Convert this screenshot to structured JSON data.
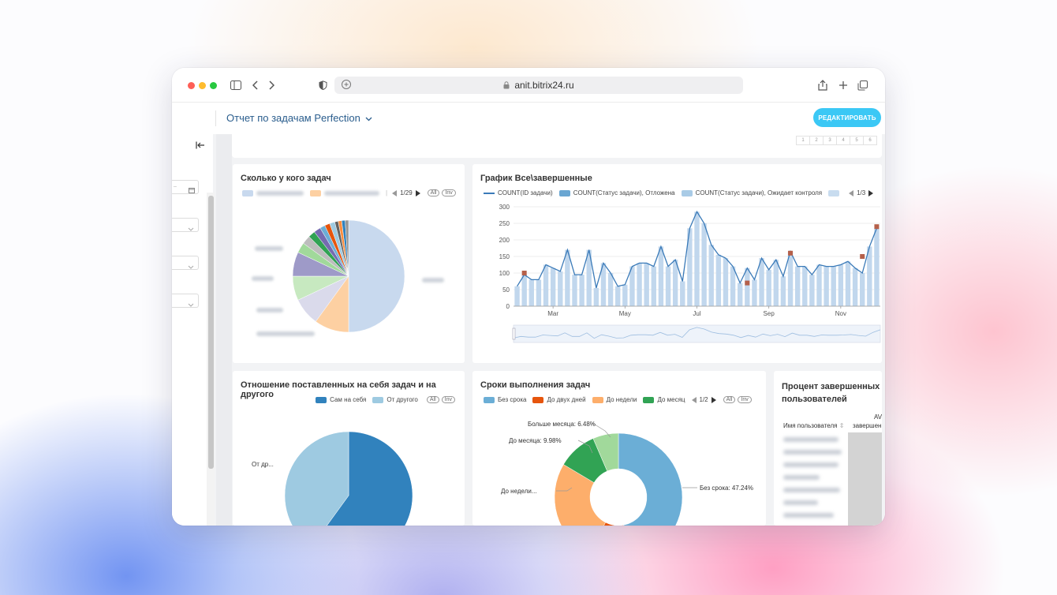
{
  "browser": {
    "url": "anit.bitrix24.ru"
  },
  "header": {
    "title": "Отчет по задачам Perfection",
    "edit_button": "РЕДАКТИРОВАТЬ"
  },
  "pager": [
    "1",
    "2",
    "3",
    "4",
    "5",
    "6"
  ],
  "widgets": {
    "tasks_per_user": {
      "title": "Сколько у кого задач",
      "legend_page": "1/29",
      "all_label": "All",
      "inv_label": "Inv"
    },
    "all_completed": {
      "title": "График Все\\завершенные",
      "legend": [
        "COUNT(ID задачи)",
        "COUNT(Статус задачи), Отложена",
        "COUNT(Статус задачи), Ожидает контроля"
      ],
      "legend_page": "1/3"
    },
    "self_vs_other": {
      "title": "Отношение поставленных на себя задач и на другого",
      "legend": [
        "Сам на себя",
        "От другого"
      ],
      "all_label": "All",
      "inv_label": "Inv",
      "label_other": "От др..."
    },
    "deadlines": {
      "title": "Сроки выполнения задач",
      "legend": [
        "Без срока",
        "До двух дней",
        "До недели",
        "До месяц"
      ],
      "legend_page": "1/2",
      "all_label": "All",
      "inv_label": "Inv",
      "labels": {
        "more_month": "Больше месяца: 6.48%",
        "to_month": "До месяца: 9.98%",
        "to_week": "До недели...",
        "no_deadline": "Без срока: 47.24%"
      }
    },
    "percent_completed": {
      "title": "Процент завершенных за",
      "title_line2": "пользователей",
      "col_user": "Имя пользователя",
      "col_avg": "AV",
      "col_avg2": "завершен"
    }
  },
  "chart_data": [
    {
      "type": "pie",
      "title": "Сколько у кого задач",
      "slices": [
        {
          "label": "",
          "value": 50.0,
          "color": "#c8d9ee"
        },
        {
          "label": "",
          "value": 10.0,
          "color": "#fdd0a2"
        },
        {
          "label": "",
          "value": 8.0,
          "color": "#dadaeb"
        },
        {
          "label": "",
          "value": 7.0,
          "color": "#c7e9c0"
        },
        {
          "label": "",
          "value": 7.0,
          "color": "#9e9ac8"
        },
        {
          "label": "",
          "value": 3.0,
          "color": "#a1d99b"
        },
        {
          "label": "",
          "value": 2.5,
          "color": "#bdbdbd"
        },
        {
          "label": "",
          "value": 2.0,
          "color": "#31a354"
        },
        {
          "label": "",
          "value": 2.0,
          "color": "#756bb1"
        },
        {
          "label": "",
          "value": 1.5,
          "color": "#6baed6"
        },
        {
          "label": "",
          "value": 1.5,
          "color": "#e6550d"
        },
        {
          "label": "",
          "value": 1.5,
          "color": "#9ecae1"
        },
        {
          "label": "",
          "value": 1.0,
          "color": "#636363"
        },
        {
          "label": "",
          "value": 1.0,
          "color": "#fd8d3c"
        },
        {
          "label": "",
          "value": 1.0,
          "color": "#3182bd"
        },
        {
          "label": "",
          "value": 1.0,
          "color": "#969696"
        }
      ]
    },
    {
      "type": "bar",
      "title": "График Все\\завершенные",
      "ylim": [
        0,
        300
      ],
      "yticks": [
        0,
        50,
        100,
        150,
        200,
        250,
        300
      ],
      "xticks": [
        "Mar",
        "May",
        "Jul",
        "Sep",
        "Nov"
      ],
      "xtick_index": [
        5,
        15,
        25,
        35,
        45
      ],
      "grid": true,
      "series": [
        {
          "name": "COUNT(ID задачи)",
          "kind": "line",
          "color": "#3a7ab8",
          "values": [
            60,
            95,
            80,
            80,
            125,
            115,
            105,
            170,
            95,
            95,
            170,
            55,
            130,
            100,
            60,
            65,
            120,
            130,
            130,
            120,
            180,
            120,
            140,
            75,
            235,
            285,
            250,
            185,
            155,
            145,
            120,
            70,
            115,
            80,
            145,
            110,
            140,
            90,
            165,
            120,
            120,
            95,
            125,
            120,
            120,
            125,
            135,
            115,
            100,
            180,
            235
          ]
        },
        {
          "name": "COUNT(Статус задачи), Отложена",
          "kind": "marker",
          "color": "#b5604a",
          "points": [
            [
              1,
              100
            ],
            [
              32,
              70
            ],
            [
              38,
              160
            ],
            [
              48,
              150
            ],
            [
              50,
              240
            ]
          ]
        },
        {
          "name": "COUNT(Статус задачи), Ожидает контроля",
          "kind": "bar",
          "color": "#c1d7ed",
          "values": [
            60,
            95,
            80,
            80,
            125,
            115,
            105,
            170,
            95,
            95,
            170,
            55,
            130,
            100,
            60,
            65,
            120,
            130,
            130,
            120,
            180,
            120,
            140,
            75,
            235,
            285,
            250,
            185,
            155,
            145,
            120,
            70,
            115,
            80,
            145,
            110,
            140,
            90,
            165,
            120,
            120,
            95,
            125,
            120,
            120,
            125,
            135,
            115,
            100,
            180,
            235
          ]
        }
      ]
    },
    {
      "type": "pie",
      "title": "Отношение поставленных на себя задач и на другого",
      "slices": [
        {
          "label": "Сам на себя",
          "value": 60,
          "color": "#3182bd"
        },
        {
          "label": "От другого",
          "value": 40,
          "color": "#9ecae1"
        }
      ]
    },
    {
      "type": "pie",
      "title": "Сроки выполнения задач",
      "donut": true,
      "slices": [
        {
          "label": "Без срока",
          "value": 47.24,
          "color": "#6baed6"
        },
        {
          "label": "До двух дней",
          "value": 10.3,
          "color": "#e6550d"
        },
        {
          "label": "До недели",
          "value": 26.0,
          "color": "#fdae6b"
        },
        {
          "label": "До месяц",
          "value": 9.98,
          "color": "#31a354"
        },
        {
          "label": "Больше месяца",
          "value": 6.48,
          "color": "#a1d99b"
        }
      ]
    }
  ],
  "colors": {
    "accent_button": "#3bc8f5",
    "title_link": "#2a5d8d"
  }
}
